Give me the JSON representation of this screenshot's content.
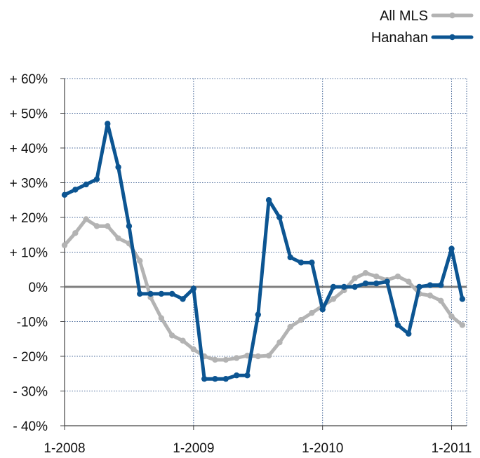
{
  "chart_data": {
    "type": "line",
    "title": "",
    "xlabel": "",
    "ylabel": "",
    "ylim": [
      -40,
      60
    ],
    "y_ticks": [
      60,
      50,
      40,
      30,
      20,
      10,
      0,
      -10,
      -20,
      -30,
      -40
    ],
    "y_tick_labels": [
      "+ 60%",
      "+ 50%",
      "+ 40%",
      "+ 30%",
      "+ 20%",
      "+ 10%",
      "0%",
      "-10%",
      "- 20%",
      "- 30%",
      "- 40%"
    ],
    "x_tick_labels": [
      "1-2008",
      "1-2009",
      "1-2010",
      "1-2011"
    ],
    "x_tick_positions": [
      0,
      12,
      24,
      36
    ],
    "xlim": [
      0,
      37
    ],
    "grid": "dotted",
    "legend_position": "top-right",
    "series": [
      {
        "name": "All MLS",
        "color": "#b3b3b3",
        "x": [
          0,
          1,
          2,
          3,
          4,
          5,
          6,
          7,
          8,
          9,
          10,
          11,
          12,
          13,
          14,
          15,
          16,
          17,
          18,
          19,
          20,
          21,
          22,
          23,
          24,
          25,
          26,
          27,
          28,
          29,
          30,
          31,
          32,
          33,
          34,
          35,
          36,
          37
        ],
        "values": [
          12,
          15.5,
          19.5,
          17.5,
          17.5,
          14,
          12.5,
          7.5,
          -3,
          -9,
          -14,
          -15.5,
          -18,
          -20,
          -21,
          -21,
          -20.5,
          -19.8,
          -20,
          -19.8,
          -16,
          -11.5,
          -9.5,
          -7.5,
          -5.5,
          -3.5,
          -1,
          2.5,
          4,
          3,
          2,
          3,
          1.5,
          -2,
          -2.5,
          -4,
          -8.5,
          -11
        ]
      },
      {
        "name": "Hanahan",
        "color": "#0c5592",
        "x": [
          0,
          1,
          2,
          3,
          4,
          5,
          6,
          7,
          8,
          9,
          10,
          11,
          12,
          13,
          14,
          15,
          16,
          17,
          18,
          19,
          20,
          21,
          22,
          23,
          24,
          25,
          26,
          27,
          28,
          29,
          30,
          31,
          32,
          33,
          34,
          35,
          36,
          37
        ],
        "values": [
          26.5,
          28,
          29.5,
          31,
          47,
          34.5,
          17.5,
          -2,
          -2,
          -2,
          -2,
          -3.5,
          -0.5,
          -26.5,
          -26.5,
          -26.5,
          -25.5,
          -25.5,
          -8,
          25,
          20,
          8.5,
          7,
          7,
          -6.5,
          0,
          0,
          0,
          1,
          1,
          1.5,
          -11,
          -13.5,
          0,
          0.5,
          0.5,
          11,
          -3.5
        ]
      }
    ]
  }
}
